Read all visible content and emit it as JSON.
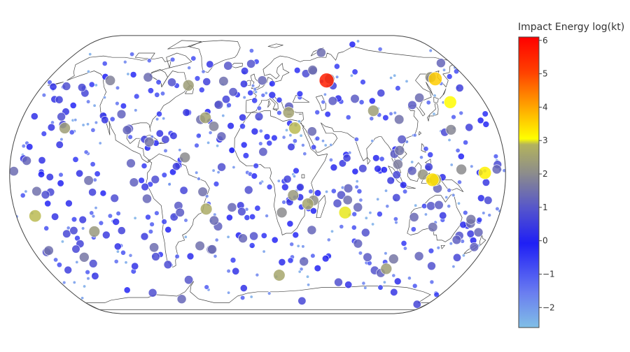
{
  "chart_data": {
    "type": "scatter",
    "projection": "natural-earth",
    "basemap": "world coastlines",
    "x_is": "longitude (degrees)",
    "y_is": "latitude (degrees)",
    "marker_size_encodes": "impact energy",
    "colorbar": {
      "title": "Impact Energy log(kt)",
      "range": [
        -2.6,
        6.1
      ],
      "ticks": [
        -2,
        -1,
        0,
        1,
        2,
        3,
        4,
        5,
        6
      ],
      "tick_labels": [
        "−2",
        "−1",
        "0",
        "1",
        "2",
        "3",
        "4",
        "5",
        "6"
      ],
      "colorscale": [
        [
          0,
          "#80bfe6"
        ],
        [
          0.12,
          "#6a7df0"
        ],
        [
          0.29,
          "#1f1ff5"
        ],
        [
          0.41,
          "#5555cc"
        ],
        [
          0.53,
          "#8c8c8c"
        ],
        [
          0.63,
          "#b3b35c"
        ],
        [
          0.65,
          "#ffff00"
        ],
        [
          0.76,
          "#ffa500"
        ],
        [
          0.88,
          "#ff4000"
        ],
        [
          1,
          "#ff0000"
        ]
      ]
    },
    "points": [
      {
        "lon": 59.0,
        "lat": 55.0,
        "log_kt": 5.6
      },
      {
        "lon": 62.0,
        "lat": 56.0,
        "log_kt": 1.8
      },
      {
        "lon": 153.0,
        "lat": 56.0,
        "log_kt": 3.6
      },
      {
        "lon": 150.0,
        "lat": 57.0,
        "log_kt": 2.2
      },
      {
        "lon": 153.0,
        "lat": 42.0,
        "log_kt": 3.1
      },
      {
        "lon": 145.0,
        "lat": 26.0,
        "log_kt": 1.9
      },
      {
        "lon": 165.0,
        "lat": 1.0,
        "log_kt": 3.2
      },
      {
        "lon": 148.0,
        "lat": 3.0,
        "log_kt": 2.0
      },
      {
        "lon": 120.0,
        "lat": 0.0,
        "log_kt": 2.2
      },
      {
        "lon": 127.0,
        "lat": -3.0,
        "log_kt": 3.4
      },
      {
        "lon": 129.0,
        "lat": -3.0,
        "log_kt": 2.8
      },
      {
        "lon": 28.0,
        "lat": 27.0,
        "log_kt": 2.9
      },
      {
        "lon": 24.0,
        "lat": 36.0,
        "log_kt": 2.5
      },
      {
        "lon": 90.0,
        "lat": 37.0,
        "log_kt": 2.4
      },
      {
        "lon": 108.0,
        "lat": 32.0,
        "log_kt": 1.5
      },
      {
        "lon": 104.0,
        "lat": 14.0,
        "log_kt": 1.6
      },
      {
        "lon": 102.0,
        "lat": 6.0,
        "log_kt": 1.7
      },
      {
        "lon": -58.0,
        "lat": 52.0,
        "log_kt": 2.4
      },
      {
        "lon": -40.0,
        "lat": 33.0,
        "log_kt": 2.5
      },
      {
        "lon": -33.0,
        "lat": 28.0,
        "log_kt": 1.8
      },
      {
        "lon": -126.0,
        "lat": 55.0,
        "log_kt": 1.8
      },
      {
        "lon": -145.0,
        "lat": 27.0,
        "log_kt": 2.4
      },
      {
        "lon": -80.0,
        "lat": 19.0,
        "log_kt": 1.6
      },
      {
        "lon": -53.0,
        "lat": 10.0,
        "log_kt": 2.0
      },
      {
        "lon": -177.0,
        "lat": 2.0,
        "log_kt": 1.4
      },
      {
        "lon": -166.0,
        "lat": -24.0,
        "log_kt": 2.9
      },
      {
        "lon": -125.0,
        "lat": -33.0,
        "log_kt": 2.3
      },
      {
        "lon": -142.0,
        "lat": -48.0,
        "log_kt": 1.6
      },
      {
        "lon": -38.0,
        "lat": -20.0,
        "log_kt": 2.7
      },
      {
        "lon": -40.0,
        "lat": -10.0,
        "log_kt": 1.5
      },
      {
        "lon": -81.0,
        "lat": -14.0,
        "log_kt": 1.3
      },
      {
        "lon": 37.0,
        "lat": -17.0,
        "log_kt": 2.6
      },
      {
        "lon": 41.0,
        "lat": -15.0,
        "log_kt": 2.1
      },
      {
        "lon": 26.0,
        "lat": -12.0,
        "log_kt": 2.3
      },
      {
        "lon": 18.0,
        "lat": -22.0,
        "log_kt": 2.0
      },
      {
        "lon": 65.0,
        "lat": -22.0,
        "log_kt": 3.0
      },
      {
        "lon": 74.0,
        "lat": -19.0,
        "log_kt": 1.3
      },
      {
        "lon": 19.0,
        "lat": -59.0,
        "log_kt": 2.6
      },
      {
        "lon": 110.0,
        "lat": -55.0,
        "log_kt": 2.4
      },
      {
        "lon": 112.0,
        "lat": -49.0,
        "log_kt": 1.6
      },
      {
        "lon": 160.0,
        "lat": -26.0,
        "log_kt": 1.6
      },
      {
        "lon": 172.0,
        "lat": -42.0,
        "log_kt": 1.2
      },
      {
        "lon": 4.0,
        "lat": 55.0,
        "log_kt": 1.3
      },
      {
        "lon": -95.0,
        "lat": 57.0,
        "log_kt": 1.4
      },
      {
        "lon": -105.0,
        "lat": 35.0,
        "log_kt": 1.2
      },
      {
        "lon": 131.0,
        "lat": -8.0,
        "log_kt": 1.3
      },
      {
        "lon": -30.0,
        "lat": -30.0,
        "log_kt": 1.2
      },
      {
        "lon": 79.0,
        "lat": -40.0,
        "log_kt": 1.2
      },
      {
        "lon": 66.0,
        "lat": -8.0,
        "log_kt": 1.2
      },
      {
        "lon": 90.0,
        "lat": -48.0,
        "log_kt": 1.1
      },
      {
        "lon": -62.0,
        "lat": -62.0,
        "log_kt": 1.0
      },
      {
        "lon": -170.0,
        "lat": -45.0,
        "log_kt": 1.0
      },
      {
        "lon": 100.0,
        "lat": 12.0,
        "log_kt": 1.1
      },
      {
        "lon": 78.0,
        "lat": 44.0,
        "log_kt": 1.1
      },
      {
        "lon": -20.0,
        "lat": 48.0,
        "log_kt": 1.0
      }
    ]
  }
}
